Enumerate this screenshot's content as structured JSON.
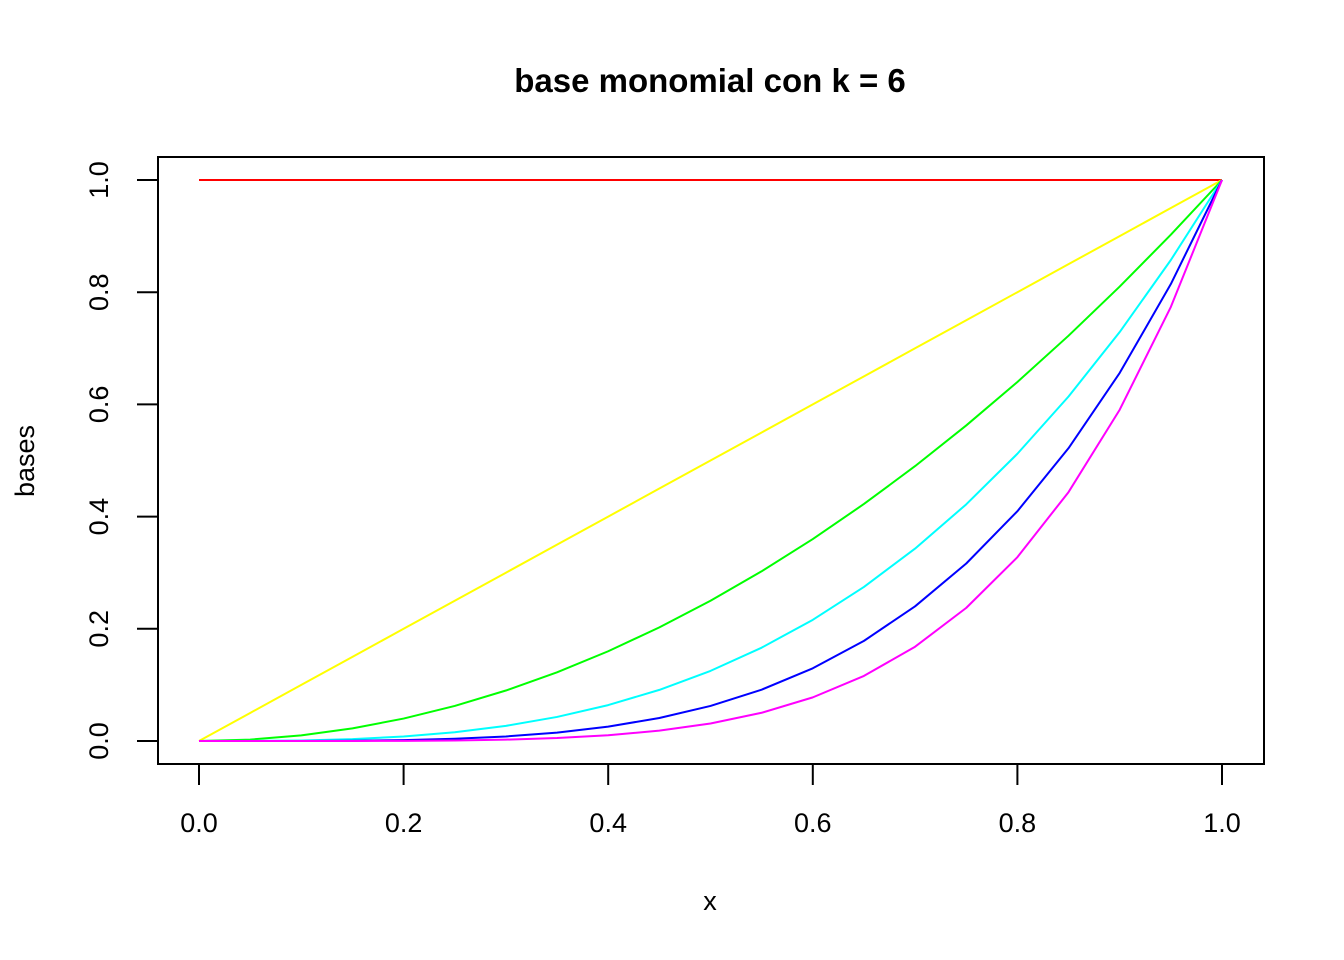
{
  "chart_data": {
    "type": "line",
    "title": "base monomial con k = 6",
    "xlabel": "x",
    "ylabel": "bases",
    "xlim": [
      0,
      1
    ],
    "ylim": [
      0,
      1
    ],
    "x_ticks": [
      "0.0",
      "0.2",
      "0.4",
      "0.6",
      "0.8",
      "1.0"
    ],
    "y_ticks": [
      "0.0",
      "0.2",
      "0.4",
      "0.6",
      "0.8",
      "1.0"
    ],
    "x": [
      0.0,
      0.05,
      0.1,
      0.15,
      0.2,
      0.25,
      0.3,
      0.35,
      0.4,
      0.45,
      0.5,
      0.55,
      0.6,
      0.65,
      0.7,
      0.75,
      0.8,
      0.85,
      0.9,
      0.95,
      1.0
    ],
    "series": [
      {
        "color": "#ff0000",
        "values": [
          1,
          1,
          1,
          1,
          1,
          1,
          1,
          1,
          1,
          1,
          1,
          1,
          1,
          1,
          1,
          1,
          1,
          1,
          1,
          1,
          1
        ]
      },
      {
        "color": "#ffff00",
        "values": [
          0,
          0.05,
          0.1,
          0.15,
          0.2,
          0.25,
          0.3,
          0.35,
          0.4,
          0.45,
          0.5,
          0.55,
          0.6,
          0.65,
          0.7,
          0.75,
          0.8,
          0.85,
          0.9,
          0.95,
          1
        ]
      },
      {
        "color": "#00ff00",
        "values": [
          0,
          0.0025,
          0.01,
          0.0225,
          0.04,
          0.0625,
          0.09,
          0.1225,
          0.16,
          0.2025,
          0.25,
          0.3025,
          0.36,
          0.4225,
          0.49,
          0.5625,
          0.64,
          0.7225,
          0.81,
          0.9025,
          1
        ]
      },
      {
        "color": "#00ffff",
        "values": [
          0,
          0.000125,
          0.001,
          0.003375,
          0.008,
          0.015625,
          0.027,
          0.042875,
          0.064,
          0.091125,
          0.125,
          0.166375,
          0.216,
          0.274625,
          0.343,
          0.421875,
          0.512,
          0.614125,
          0.729,
          0.857375,
          1
        ]
      },
      {
        "color": "#0000ff",
        "values": [
          0,
          6.3e-06,
          0.0001,
          0.0005063,
          0.0016,
          0.0039063,
          0.0081,
          0.0150063,
          0.0256,
          0.0410063,
          0.0625,
          0.0915063,
          0.1296,
          0.1785063,
          0.2401,
          0.3164063,
          0.4096,
          0.5220063,
          0.6561,
          0.8145063,
          1
        ]
      },
      {
        "color": "#ff00ff",
        "values": [
          0,
          3e-07,
          1e-05,
          7.59e-05,
          0.00032,
          0.0009766,
          0.00243,
          0.0052522,
          0.01024,
          0.0184528,
          0.03125,
          0.0503284,
          0.07776,
          0.116029,
          0.16807,
          0.2373047,
          0.32768,
          0.4437053,
          0.59049,
          0.7737809,
          1
        ]
      }
    ]
  }
}
